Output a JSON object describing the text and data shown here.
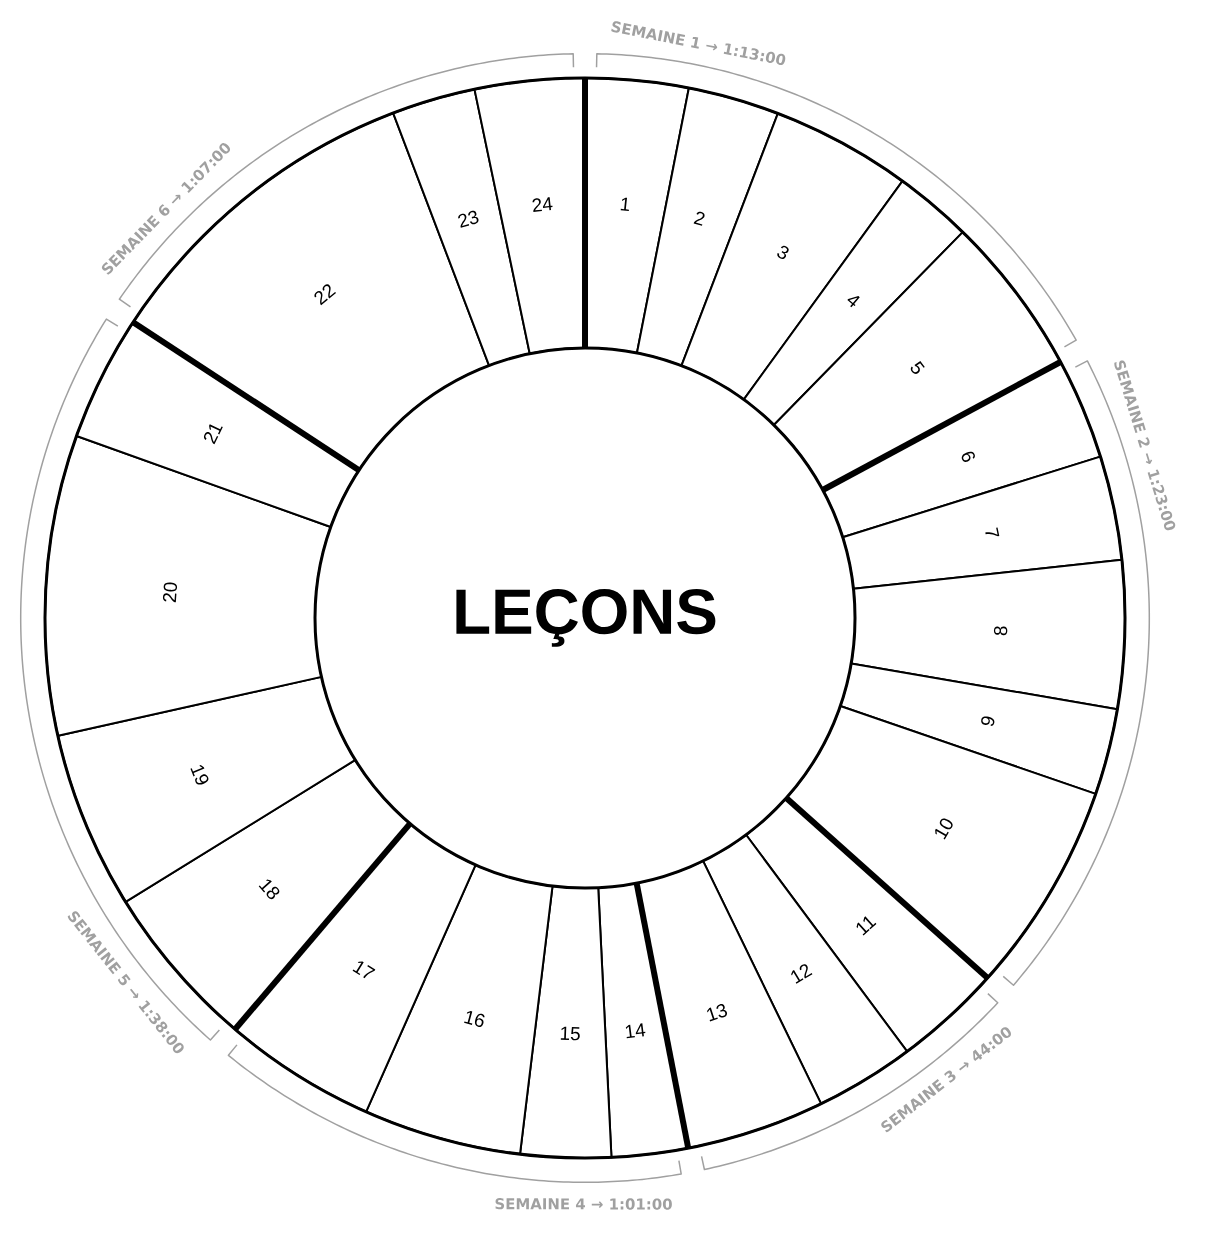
{
  "chart_data": {
    "type": "donut",
    "title": "LEÇONS",
    "categories": [
      "1",
      "2",
      "3",
      "4",
      "5",
      "6",
      "7",
      "8",
      "9",
      "10",
      "11",
      "12",
      "13",
      "14",
      "15",
      "16",
      "17",
      "18",
      "19",
      "20",
      "21",
      "22",
      "23",
      "24"
    ],
    "values": [
      3.08,
      2.73,
      4.19,
      2.33,
      4.81,
      3.03,
      3.11,
      4.42,
      2.58,
      6.33,
      3.22,
      2.97,
      4.14,
      2.28,
      2.7,
      4.72,
      4.58,
      4.97,
      5.31,
      8.97,
      3.75,
      10.0,
      2.5,
      3.28
    ],
    "colors": [
      "#ffffff",
      "#ffffff",
      "#ffffff",
      "#ffffff",
      "#ffffff",
      "#ffffff",
      "#ffffff",
      "#ffffff",
      "#ffffff",
      "#ffffff",
      "#ffffff",
      "#ffffff",
      "#ffffff",
      "#ffffff",
      "#ffffff",
      "#ffffff",
      "#ffffff",
      "#ffffff",
      "#ffffff",
      "#ffffff",
      "#ffffff",
      "#ffffff",
      "#ffffff",
      "#ffffff"
    ],
    "annotations": [
      {
        "text": "SEMAINE 1 → 1:13:00",
        "x": "1"
      },
      {
        "text": "SEMAINE 2 → 1:23:00",
        "x": "6"
      },
      {
        "text": "SEMAINE 3 → 44:00",
        "x": "11"
      },
      {
        "text": "SEMAINE 4 → 1:01:00",
        "x": "14"
      },
      {
        "text": "SEMAINE 5 → 1:38:00",
        "x": "18"
      },
      {
        "text": "SEMAINE 6 → 1:07:00",
        "x": "22"
      }
    ]
  }
}
